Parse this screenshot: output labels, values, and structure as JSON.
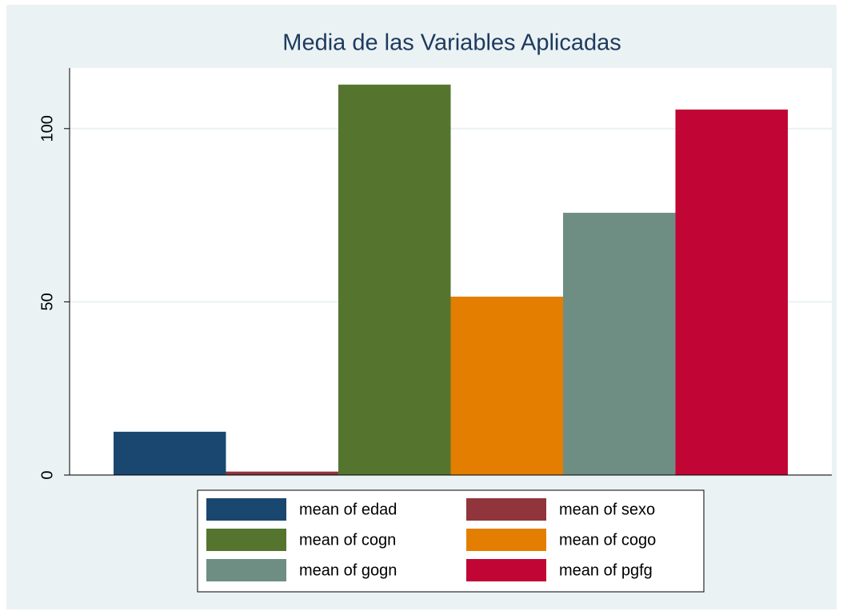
{
  "chart_data": {
    "type": "bar",
    "title": "Media de las Variables Aplicadas",
    "series": [
      {
        "name": "mean of edad",
        "color": "#1a476f",
        "values": [
          12.5
        ]
      },
      {
        "name": "mean of sexo",
        "color": "#90353b",
        "values": [
          1
        ]
      },
      {
        "name": "mean of cogn",
        "color": "#55752f",
        "values": [
          112.7
        ]
      },
      {
        "name": "mean of cogo",
        "color": "#e37e00",
        "values": [
          51.5
        ]
      },
      {
        "name": "mean of gogn",
        "color": "#6e8e84",
        "values": [
          75.7
        ]
      },
      {
        "name": "mean of pgfg",
        "color": "#c10534",
        "values": [
          105.5
        ]
      }
    ],
    "ylim": [
      0,
      117.5
    ],
    "yticks": [
      0,
      50,
      100
    ],
    "grid": true,
    "legend": "bottom"
  }
}
